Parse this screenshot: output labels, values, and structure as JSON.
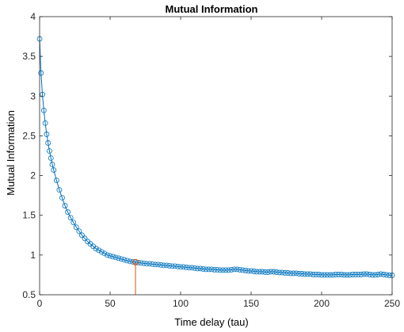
{
  "chart_data": {
    "type": "line",
    "title": "Mutual Information",
    "xlabel": "Time delay (tau)",
    "ylabel": "Mutual Information",
    "xlim": [
      0,
      250
    ],
    "ylim": [
      0.5,
      4
    ],
    "xticks": [
      0,
      50,
      100,
      150,
      200,
      250
    ],
    "yticks": [
      0.5,
      1,
      1.5,
      2,
      2.5,
      3,
      3.5,
      4
    ],
    "xtick_labels": [
      "0",
      "50",
      "100",
      "150",
      "200",
      "250"
    ],
    "ytick_labels": [
      "0.5",
      "1",
      "1.5",
      "2",
      "2.5",
      "3",
      "3.5",
      "4"
    ],
    "grid": false,
    "series": [
      {
        "color": "#0072BD",
        "marker": "circle",
        "x": [
          0,
          1,
          2,
          3,
          4,
          5,
          6,
          7,
          8,
          9,
          10,
          12,
          14,
          16,
          18,
          20,
          22,
          24,
          26,
          28,
          30,
          32,
          34,
          36,
          38,
          40,
          42,
          44,
          46,
          48,
          50,
          52,
          54,
          56,
          58,
          60,
          62,
          64,
          66,
          68,
          70,
          72,
          74,
          76,
          78,
          80,
          82,
          84,
          86,
          88,
          90,
          92,
          94,
          96,
          98,
          100,
          102,
          104,
          106,
          108,
          110,
          112,
          114,
          116,
          118,
          120,
          122,
          124,
          126,
          128,
          130,
          132,
          134,
          136,
          138,
          140,
          142,
          144,
          146,
          148,
          150,
          152,
          154,
          156,
          158,
          160,
          162,
          164,
          166,
          168,
          170,
          172,
          174,
          176,
          178,
          180,
          182,
          184,
          186,
          188,
          190,
          192,
          194,
          196,
          198,
          200,
          202,
          204,
          206,
          208,
          210,
          212,
          214,
          216,
          218,
          220,
          222,
          224,
          226,
          228,
          230,
          232,
          234,
          236,
          238,
          240,
          242,
          244,
          246,
          248,
          250
        ],
        "y": [
          3.72,
          3.29,
          3.02,
          2.82,
          2.66,
          2.52,
          2.41,
          2.31,
          2.22,
          2.14,
          2.07,
          1.94,
          1.82,
          1.72,
          1.62,
          1.54,
          1.47,
          1.41,
          1.35,
          1.3,
          1.25,
          1.21,
          1.17,
          1.14,
          1.11,
          1.08,
          1.06,
          1.04,
          1.02,
          1.0,
          0.99,
          0.98,
          0.97,
          0.96,
          0.95,
          0.94,
          0.93,
          0.92,
          0.915,
          0.91,
          0.905,
          0.9,
          0.895,
          0.89,
          0.89,
          0.885,
          0.88,
          0.88,
          0.875,
          0.87,
          0.87,
          0.865,
          0.86,
          0.86,
          0.855,
          0.85,
          0.85,
          0.845,
          0.84,
          0.84,
          0.835,
          0.83,
          0.83,
          0.825,
          0.82,
          0.82,
          0.82,
          0.815,
          0.815,
          0.81,
          0.81,
          0.81,
          0.81,
          0.815,
          0.82,
          0.82,
          0.815,
          0.81,
          0.805,
          0.8,
          0.8,
          0.795,
          0.79,
          0.79,
          0.79,
          0.785,
          0.785,
          0.79,
          0.79,
          0.785,
          0.78,
          0.78,
          0.775,
          0.775,
          0.77,
          0.77,
          0.77,
          0.765,
          0.765,
          0.76,
          0.76,
          0.76,
          0.755,
          0.755,
          0.755,
          0.75,
          0.75,
          0.75,
          0.75,
          0.75,
          0.755,
          0.755,
          0.755,
          0.75,
          0.75,
          0.75,
          0.755,
          0.755,
          0.755,
          0.755,
          0.76,
          0.76,
          0.755,
          0.75,
          0.75,
          0.755,
          0.76,
          0.755,
          0.75,
          0.745,
          0.745
        ]
      }
    ],
    "annotations": [
      {
        "type": "vertical-stem",
        "x": 68,
        "y": 0.91,
        "color": "#D95319",
        "marker": "circle"
      }
    ]
  }
}
